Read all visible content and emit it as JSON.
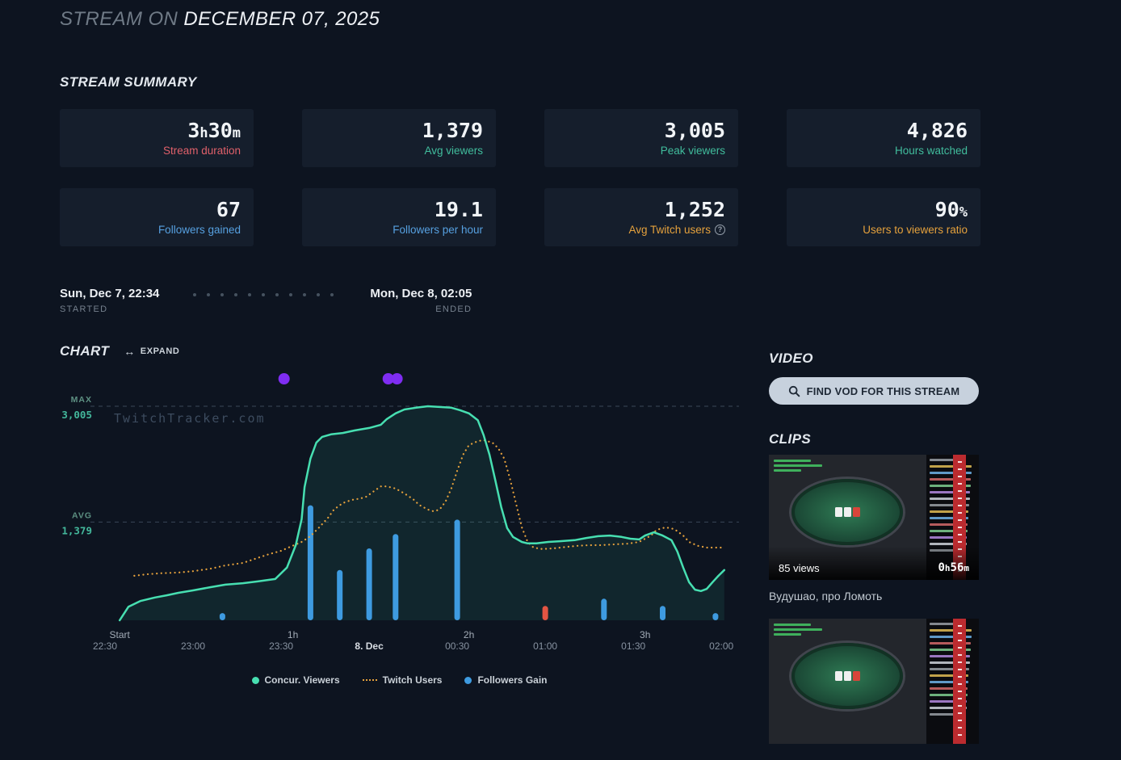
{
  "colors": {
    "red": "#e0606a",
    "green": "#41bd9d",
    "blue": "#56a0e0",
    "orange": "#e5a13c",
    "chart_green": "#47dfb1",
    "chart_orange": "#e5a13c",
    "chart_blue": "#3e9be0",
    "chart_red": "#e35543",
    "event_purple": "#7f2df2"
  },
  "header": {
    "title_prefix": "STREAM ON",
    "title_date": "DECEMBER 07, 2025"
  },
  "summary": {
    "heading": "STREAM SUMMARY",
    "stats": [
      {
        "value": "3h30m",
        "label": "Stream duration",
        "accent": "red"
      },
      {
        "value": "1,379",
        "label": "Avg viewers",
        "accent": "green"
      },
      {
        "value": "3,005",
        "label": "Peak viewers",
        "accent": "green"
      },
      {
        "value": "4,826",
        "label": "Hours watched",
        "accent": "green"
      },
      {
        "value": "67",
        "label": "Followers gained",
        "accent": "blue"
      },
      {
        "value": "19.1",
        "label": "Followers per hour",
        "accent": "blue"
      },
      {
        "value": "1,252",
        "label": "Avg Twitch users",
        "accent": "orange",
        "info": true
      },
      {
        "value": "90%",
        "label": "Users to viewers ratio",
        "accent": "orange"
      }
    ]
  },
  "session": {
    "started_time": "Sun, Dec 7, 22:34",
    "started_label": "STARTED",
    "ended_time": "Mon, Dec 8, 02:05",
    "ended_label": "ENDED"
  },
  "chart": {
    "heading": "CHART",
    "expand_label": "EXPAND",
    "watermark": "TwitchTracker.com"
  },
  "chart_data": {
    "type": "line",
    "title": "Concurrent viewers, Twitch users and followers gain over stream time",
    "x_unit": "minutes_since_22:30",
    "x_range": [
      0,
      216
    ],
    "ylim": [
      0,
      3005
    ],
    "max_line": {
      "label": "MAX",
      "value": 3005,
      "display": "3,005"
    },
    "avg_line": {
      "label": "AVG",
      "value": 1379,
      "display": "1,379"
    },
    "x_ticks_hours": [
      {
        "t": 5,
        "label": "Start"
      },
      {
        "t": 64,
        "label": "1h"
      },
      {
        "t": 124,
        "label": "2h"
      },
      {
        "t": 184,
        "label": "3h"
      }
    ],
    "x_ticks_time": [
      {
        "t": 0,
        "label": "22:30"
      },
      {
        "t": 30,
        "label": "23:00"
      },
      {
        "t": 60,
        "label": "23:30"
      },
      {
        "t": 90,
        "label": "8. Dec",
        "highlight": true
      },
      {
        "t": 120,
        "label": "00:30"
      },
      {
        "t": 150,
        "label": "01:00"
      },
      {
        "t": 180,
        "label": "01:30"
      },
      {
        "t": 210,
        "label": "02:00"
      }
    ],
    "series": [
      {
        "name": "Concur. Viewers",
        "type": "line",
        "color_key": "chart_green",
        "points": [
          [
            5,
            0
          ],
          [
            8,
            190
          ],
          [
            12,
            270
          ],
          [
            17,
            320
          ],
          [
            21,
            350
          ],
          [
            25,
            385
          ],
          [
            30,
            420
          ],
          [
            36,
            465
          ],
          [
            41,
            500
          ],
          [
            47,
            520
          ],
          [
            52,
            545
          ],
          [
            58,
            580
          ],
          [
            62,
            740
          ],
          [
            65,
            1055
          ],
          [
            67,
            1420
          ],
          [
            68,
            1870
          ],
          [
            70,
            2270
          ],
          [
            72,
            2495
          ],
          [
            74,
            2575
          ],
          [
            77,
            2610
          ],
          [
            81,
            2630
          ],
          [
            85,
            2665
          ],
          [
            90,
            2700
          ],
          [
            94,
            2745
          ],
          [
            96,
            2825
          ],
          [
            99,
            2905
          ],
          [
            102,
            2960
          ],
          [
            106,
            2985
          ],
          [
            110,
            3005
          ],
          [
            114,
            2995
          ],
          [
            118,
            2985
          ],
          [
            121,
            2950
          ],
          [
            124,
            2905
          ],
          [
            127,
            2810
          ],
          [
            129,
            2600
          ],
          [
            131,
            2325
          ],
          [
            133,
            1960
          ],
          [
            135,
            1590
          ],
          [
            137,
            1295
          ],
          [
            139,
            1170
          ],
          [
            142,
            1100
          ],
          [
            144,
            1080
          ],
          [
            147,
            1080
          ],
          [
            151,
            1100
          ],
          [
            155,
            1110
          ],
          [
            160,
            1125
          ],
          [
            164,
            1155
          ],
          [
            168,
            1180
          ],
          [
            172,
            1190
          ],
          [
            176,
            1170
          ],
          [
            179,
            1145
          ],
          [
            182,
            1135
          ],
          [
            184,
            1190
          ],
          [
            187,
            1235
          ],
          [
            190,
            1190
          ],
          [
            193,
            1125
          ],
          [
            195,
            965
          ],
          [
            197,
            740
          ],
          [
            199,
            535
          ],
          [
            201,
            430
          ],
          [
            203,
            410
          ],
          [
            205,
            440
          ],
          [
            207,
            535
          ],
          [
            209,
            625
          ],
          [
            211,
            705
          ]
        ]
      },
      {
        "name": "Twitch Users",
        "type": "dotted_line",
        "color_key": "chart_orange",
        "points": [
          [
            10,
            625
          ],
          [
            14,
            645
          ],
          [
            19,
            660
          ],
          [
            25,
            670
          ],
          [
            30,
            690
          ],
          [
            36,
            725
          ],
          [
            41,
            770
          ],
          [
            47,
            805
          ],
          [
            52,
            875
          ],
          [
            56,
            930
          ],
          [
            60,
            975
          ],
          [
            63,
            1030
          ],
          [
            67,
            1100
          ],
          [
            70,
            1180
          ],
          [
            73,
            1305
          ],
          [
            76,
            1440
          ],
          [
            78,
            1555
          ],
          [
            81,
            1645
          ],
          [
            84,
            1690
          ],
          [
            87,
            1710
          ],
          [
            89,
            1735
          ],
          [
            92,
            1825
          ],
          [
            94,
            1880
          ],
          [
            96,
            1880
          ],
          [
            99,
            1850
          ],
          [
            102,
            1780
          ],
          [
            105,
            1700
          ],
          [
            107,
            1620
          ],
          [
            110,
            1555
          ],
          [
            112,
            1530
          ],
          [
            114,
            1555
          ],
          [
            116,
            1665
          ],
          [
            118,
            1850
          ],
          [
            120,
            2100
          ],
          [
            122,
            2325
          ],
          [
            124,
            2460
          ],
          [
            127,
            2515
          ],
          [
            129,
            2530
          ],
          [
            132,
            2495
          ],
          [
            134,
            2415
          ],
          [
            136,
            2270
          ],
          [
            138,
            1985
          ],
          [
            140,
            1645
          ],
          [
            142,
            1305
          ],
          [
            144,
            1100
          ],
          [
            146,
            1020
          ],
          [
            149,
            1000
          ],
          [
            153,
            1010
          ],
          [
            157,
            1030
          ],
          [
            161,
            1045
          ],
          [
            165,
            1055
          ],
          [
            169,
            1055
          ],
          [
            173,
            1065
          ],
          [
            178,
            1075
          ],
          [
            182,
            1100
          ],
          [
            186,
            1190
          ],
          [
            188,
            1270
          ],
          [
            191,
            1305
          ],
          [
            194,
            1280
          ],
          [
            197,
            1190
          ],
          [
            199,
            1100
          ],
          [
            202,
            1045
          ],
          [
            205,
            1020
          ],
          [
            208,
            1020
          ],
          [
            210,
            1020
          ]
        ]
      },
      {
        "name": "Followers Gain",
        "type": "bar",
        "color_key": "chart_blue",
        "negative_color_key": "chart_red",
        "bars": [
          [
            40,
            1
          ],
          [
            70,
            16
          ],
          [
            80,
            7
          ],
          [
            90,
            10
          ],
          [
            99,
            12
          ],
          [
            120,
            14
          ],
          [
            150,
            -2
          ],
          [
            170,
            3
          ],
          [
            190,
            2
          ],
          [
            208,
            1
          ]
        ]
      }
    ],
    "events": [
      {
        "t": 61
      },
      {
        "t": 96.5
      },
      {
        "t": 99.5
      }
    ],
    "legend": [
      {
        "label": "Concur. Viewers",
        "swatch": "dot",
        "color_key": "chart_green"
      },
      {
        "label": "Twitch Users",
        "swatch": "dotted",
        "color_key": "chart_orange"
      },
      {
        "label": "Followers Gain",
        "swatch": "dot",
        "color_key": "chart_blue"
      }
    ]
  },
  "video": {
    "heading": "VIDEO",
    "find_vod_label": "FIND VOD FOR THIS STREAM"
  },
  "clips": {
    "heading": "CLIPS",
    "items": [
      {
        "views": "85 views",
        "duration": "0h56m",
        "title": "Вудушао, про Ломоть"
      },
      {}
    ]
  }
}
